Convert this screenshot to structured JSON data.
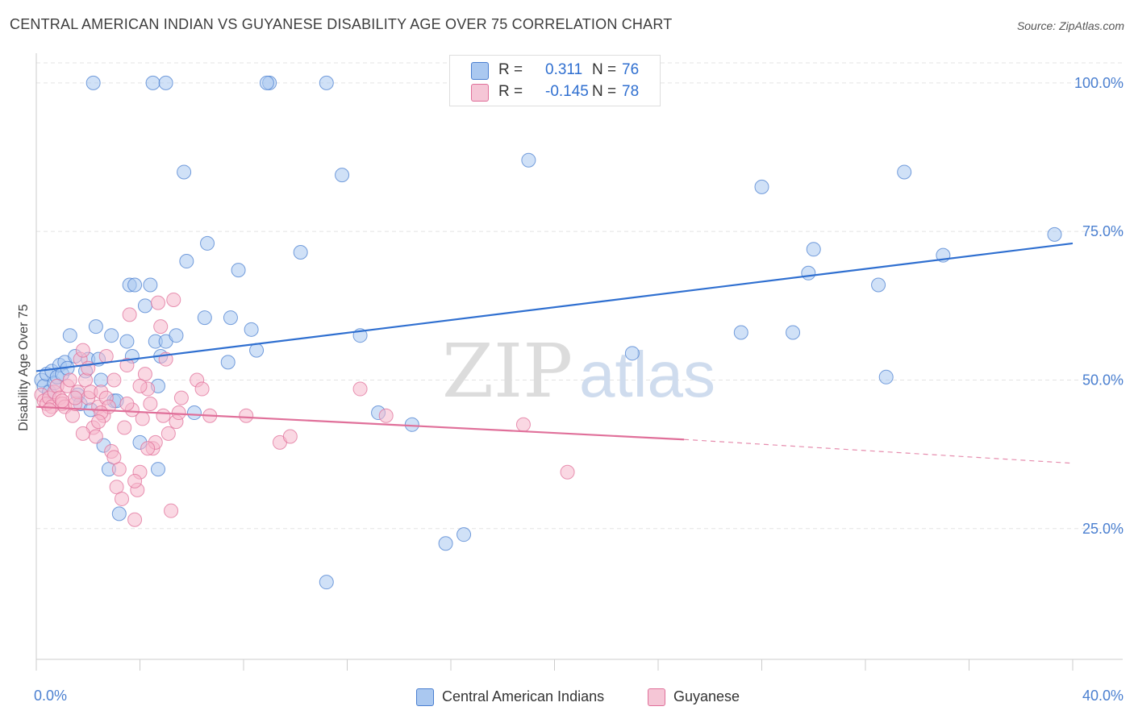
{
  "title": "CENTRAL AMERICAN INDIAN VS GUYANESE DISABILITY AGE OVER 75 CORRELATION CHART",
  "source": "Source: ZipAtlas.com",
  "watermark": {
    "zip": "ZIP",
    "atlas": "atlas"
  },
  "legend": {
    "r_label": "R =",
    "n_label": "N =",
    "series": [
      {
        "name": "Central American Indians",
        "r": "0.311",
        "n": "76",
        "color": "#4a7fd0",
        "fill": "#aac8f0"
      },
      {
        "name": "Guyanese",
        "r": "-0.145",
        "n": "78",
        "color": "#e0709a",
        "fill": "#f5b8cc"
      }
    ]
  },
  "colors": {
    "blue_line": "#2f6fd0",
    "pink_line": "#e0709a",
    "tick_text": "#4a7fd0",
    "grid": "#e3e3e3"
  },
  "chart_data": {
    "type": "scatter",
    "title": "CENTRAL AMERICAN INDIAN VS GUYANESE DISABILITY AGE OVER 75 CORRELATION CHART",
    "xlabel": "",
    "ylabel": "Disability Age Over 75",
    "xlim": [
      0,
      40
    ],
    "ylim": [
      3,
      105
    ],
    "x_tick_labels": [
      "0.0%",
      "40.0%"
    ],
    "y_ticks": [
      25,
      50,
      75,
      100
    ],
    "y_tick_labels": [
      "25.0%",
      "50.0%",
      "75.0%",
      "100.0%"
    ],
    "grid": true,
    "legend_position": "top-center",
    "series": [
      {
        "name": "Central American Indians",
        "color": "#4a7fd0",
        "points": [
          [
            0.2,
            50
          ],
          [
            0.3,
            49
          ],
          [
            0.4,
            51
          ],
          [
            0.5,
            48
          ],
          [
            0.6,
            51.5
          ],
          [
            0.7,
            49.5
          ],
          [
            0.8,
            50.5
          ],
          [
            0.9,
            52.5
          ],
          [
            1.0,
            51
          ],
          [
            1.1,
            53
          ],
          [
            1.2,
            52
          ],
          [
            1.3,
            57.5
          ],
          [
            1.5,
            54
          ],
          [
            1.6,
            47.5
          ],
          [
            1.7,
            46
          ],
          [
            1.9,
            51.5
          ],
          [
            2.0,
            53.5
          ],
          [
            2.1,
            45
          ],
          [
            2.3,
            59
          ],
          [
            2.4,
            53.5
          ],
          [
            2.5,
            50
          ],
          [
            2.6,
            39
          ],
          [
            2.8,
            35
          ],
          [
            2.9,
            57.5
          ],
          [
            3.0,
            46.5
          ],
          [
            3.1,
            46.5
          ],
          [
            3.2,
            27.5
          ],
          [
            3.5,
            56.5
          ],
          [
            3.6,
            66
          ],
          [
            3.7,
            54
          ],
          [
            3.8,
            66
          ],
          [
            4.0,
            39.5
          ],
          [
            4.2,
            62.5
          ],
          [
            4.4,
            66
          ],
          [
            4.6,
            56.5
          ],
          [
            4.7,
            35
          ],
          [
            4.7,
            49
          ],
          [
            4.8,
            54
          ],
          [
            5.0,
            56.5
          ],
          [
            5.4,
            57.5
          ],
          [
            5.7,
            85
          ],
          [
            5.8,
            70
          ],
          [
            6.1,
            44.5
          ],
          [
            6.5,
            60.5
          ],
          [
            6.6,
            73
          ],
          [
            7.4,
            53
          ],
          [
            7.5,
            60.5
          ],
          [
            7.8,
            68.5
          ],
          [
            8.3,
            58.5
          ],
          [
            8.5,
            55
          ],
          [
            9.0,
            100
          ],
          [
            10.2,
            71.5
          ],
          [
            11.2,
            16
          ],
          [
            11.8,
            84.5
          ],
          [
            12.5,
            57.5
          ],
          [
            13.2,
            44.5
          ],
          [
            14.5,
            42.5
          ],
          [
            15.8,
            22.5
          ],
          [
            16.5,
            24
          ],
          [
            19,
            87
          ],
          [
            23,
            54.5
          ],
          [
            27.2,
            58
          ],
          [
            28,
            82.5
          ],
          [
            29.2,
            58
          ],
          [
            29.8,
            68
          ],
          [
            30,
            72
          ],
          [
            32.5,
            66
          ],
          [
            32.8,
            50.5
          ],
          [
            33.5,
            85
          ],
          [
            35,
            71
          ],
          [
            39.3,
            74.5
          ],
          [
            8.9,
            100
          ],
          [
            11.2,
            100
          ],
          [
            4.5,
            100
          ],
          [
            5.0,
            100
          ],
          [
            2.2,
            100
          ]
        ]
      },
      {
        "name": "Guyanese",
        "color": "#e0709a",
        "points": [
          [
            0.2,
            47.5
          ],
          [
            0.3,
            46.5
          ],
          [
            0.4,
            46
          ],
          [
            0.5,
            47
          ],
          [
            0.6,
            45.5
          ],
          [
            0.7,
            48
          ],
          [
            0.8,
            49
          ],
          [
            0.9,
            47
          ],
          [
            1.0,
            46
          ],
          [
            1.1,
            45.5
          ],
          [
            1.2,
            49
          ],
          [
            1.3,
            50
          ],
          [
            1.4,
            44
          ],
          [
            1.5,
            46
          ],
          [
            1.6,
            48
          ],
          [
            1.7,
            53.5
          ],
          [
            1.8,
            55
          ],
          [
            1.9,
            50
          ],
          [
            2.0,
            47
          ],
          [
            2.1,
            48
          ],
          [
            2.2,
            42
          ],
          [
            2.3,
            40.5
          ],
          [
            2.4,
            45.5
          ],
          [
            2.5,
            48
          ],
          [
            2.6,
            44
          ],
          [
            2.7,
            47
          ],
          [
            2.8,
            45.5
          ],
          [
            2.9,
            38
          ],
          [
            3.0,
            50
          ],
          [
            3.1,
            32
          ],
          [
            3.2,
            35
          ],
          [
            3.3,
            30
          ],
          [
            3.4,
            42
          ],
          [
            3.5,
            52.5
          ],
          [
            3.6,
            61
          ],
          [
            3.7,
            45
          ],
          [
            3.8,
            26.5
          ],
          [
            3.9,
            31.5
          ],
          [
            4.0,
            34.5
          ],
          [
            4.1,
            43.5
          ],
          [
            4.2,
            51
          ],
          [
            4.3,
            48.5
          ],
          [
            4.4,
            46
          ],
          [
            4.5,
            38.5
          ],
          [
            4.6,
            39.5
          ],
          [
            4.7,
            63
          ],
          [
            4.8,
            59
          ],
          [
            4.9,
            44
          ],
          [
            5.0,
            53.5
          ],
          [
            5.1,
            41
          ],
          [
            5.2,
            28
          ],
          [
            5.3,
            63.5
          ],
          [
            5.4,
            43
          ],
          [
            5.5,
            44.5
          ],
          [
            6.2,
            50
          ],
          [
            6.4,
            48.5
          ],
          [
            6.7,
            44
          ],
          [
            8.1,
            44
          ],
          [
            9.4,
            39.5
          ],
          [
            9.8,
            40.5
          ],
          [
            12.5,
            48.5
          ],
          [
            13.5,
            44
          ],
          [
            18.8,
            42.5
          ],
          [
            20.5,
            34.5
          ],
          [
            1.0,
            46.5
          ],
          [
            1.5,
            47
          ],
          [
            2.0,
            52
          ],
          [
            2.5,
            44.5
          ],
          [
            3.0,
            37
          ],
          [
            3.5,
            46
          ],
          [
            4.0,
            49
          ],
          [
            0.5,
            45
          ],
          [
            1.8,
            41
          ],
          [
            2.4,
            43
          ],
          [
            2.7,
            54
          ],
          [
            3.8,
            33
          ],
          [
            4.3,
            38.5
          ],
          [
            5.6,
            47
          ]
        ]
      }
    ],
    "trendlines": [
      {
        "series": "Central American Indians",
        "from": [
          0,
          51.5
        ],
        "to": [
          40,
          73
        ]
      },
      {
        "series": "Guyanese",
        "from": [
          0,
          45.5
        ],
        "to": [
          25,
          40
        ],
        "dashed_extension_to": [
          40,
          36
        ]
      }
    ]
  }
}
